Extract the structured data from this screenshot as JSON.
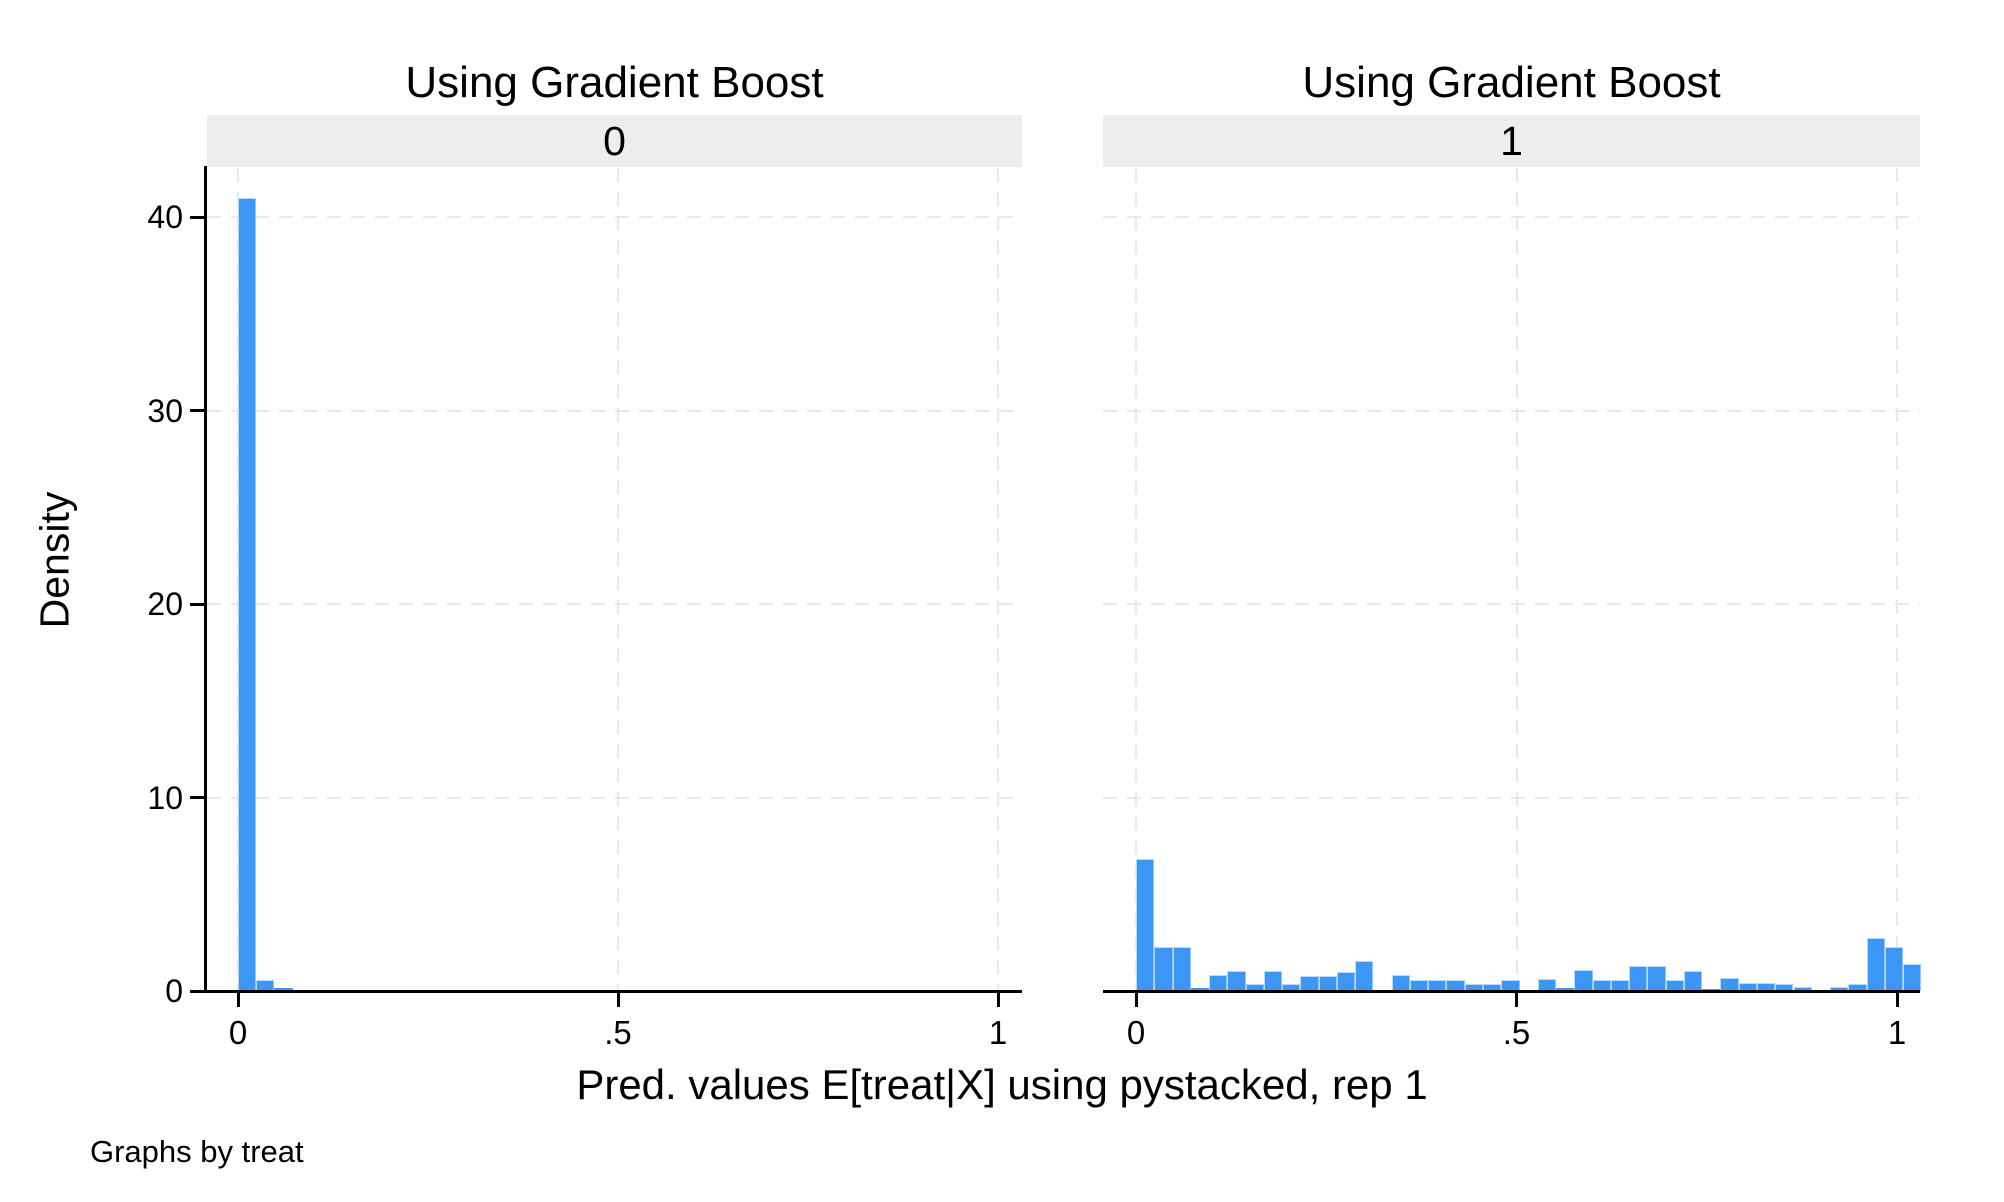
{
  "figure": {
    "kind": "stata-by-graph-histogram",
    "panels": [
      {
        "title": "Using Gradient Boost",
        "strip_label": "0"
      },
      {
        "title": "Using Gradient Boost",
        "strip_label": "1"
      }
    ],
    "y_axis_title": "Density",
    "x_axis_title": "Pred. values E[treat|X] using pystacked, rep 1",
    "note": "Graphs by treat",
    "colors": {
      "bar_fill": "#3C96F6",
      "bar_edge": "rgba(255,255,255,0.65)",
      "strip_bg": "#EDEDED",
      "grid": "#E8E8E8",
      "axis": "#000000",
      "background": "#FFFFFF"
    }
  },
  "chart_data": [
    {
      "type": "bar",
      "subtype": "histogram",
      "title": "Using Gradient Boost",
      "facet_label": "0",
      "xlabel": "Pred. values E[treat|X] using pystacked, rep 1",
      "ylabel": "Density",
      "xlim": [
        0,
        1.032
      ],
      "ylim": [
        0,
        42.5
      ],
      "grid": true,
      "legend": "none",
      "bin_start": 0,
      "bin_width": 0.024,
      "x_ticks": [
        {
          "value": 0,
          "label": "0"
        },
        {
          "value": 0.5,
          "label": ".5"
        },
        {
          "value": 1,
          "label": "1"
        }
      ],
      "y_ticks": [
        {
          "value": 0,
          "label": "0"
        },
        {
          "value": 10,
          "label": "10"
        },
        {
          "value": 20,
          "label": "20"
        },
        {
          "value": 30,
          "label": "30"
        },
        {
          "value": 40,
          "label": "40"
        }
      ],
      "densities": [
        41,
        0.56,
        0.16,
        0.07,
        0.07,
        0.07,
        0.07,
        0.07,
        0.07,
        0.07,
        0.07,
        0.07,
        0.07,
        0.07,
        0.07,
        0.07,
        0.07,
        0.07,
        0.07,
        0.07,
        0.07,
        0.07,
        0.07,
        0.07,
        0.07,
        0,
        0.07,
        0.07,
        0.07,
        0.07,
        0.07,
        0,
        0.07,
        0,
        0.07,
        0.07,
        0.07,
        0.07,
        0.07,
        0.07,
        0.07,
        0.07,
        0
      ]
    },
    {
      "type": "bar",
      "subtype": "histogram",
      "title": "Using Gradient Boost",
      "facet_label": "1",
      "xlabel": "Pred. values E[treat|X] using pystacked, rep 1",
      "ylabel": "Density",
      "xlim": [
        0,
        1.032
      ],
      "ylim": [
        0,
        42.5
      ],
      "grid": true,
      "legend": "none",
      "bin_start": 0,
      "bin_width": 0.024,
      "x_ticks": [
        {
          "value": 0,
          "label": "0"
        },
        {
          "value": 0.5,
          "label": ".5"
        },
        {
          "value": 1,
          "label": "1"
        }
      ],
      "y_ticks": [
        {
          "value": 0,
          "label": "0"
        },
        {
          "value": 10,
          "label": "10"
        },
        {
          "value": 20,
          "label": "20"
        },
        {
          "value": 30,
          "label": "30"
        },
        {
          "value": 40,
          "label": "40"
        }
      ],
      "densities": [
        6.8,
        2.25,
        2.25,
        0.15,
        0.85,
        1.05,
        0.35,
        1.05,
        0.35,
        0.8,
        0.8,
        1.0,
        1.55,
        0.05,
        0.85,
        0.57,
        0.57,
        0.57,
        0.38,
        0.38,
        0.57,
        0,
        0.6,
        0.14,
        1.08,
        0.58,
        0.58,
        1.3,
        1.3,
        0.58,
        1.05,
        0.1,
        0.65,
        0.43,
        0.43,
        0.36,
        0.22,
        0,
        0.22,
        0.36,
        2.76,
        2.29,
        1.38
      ]
    }
  ]
}
